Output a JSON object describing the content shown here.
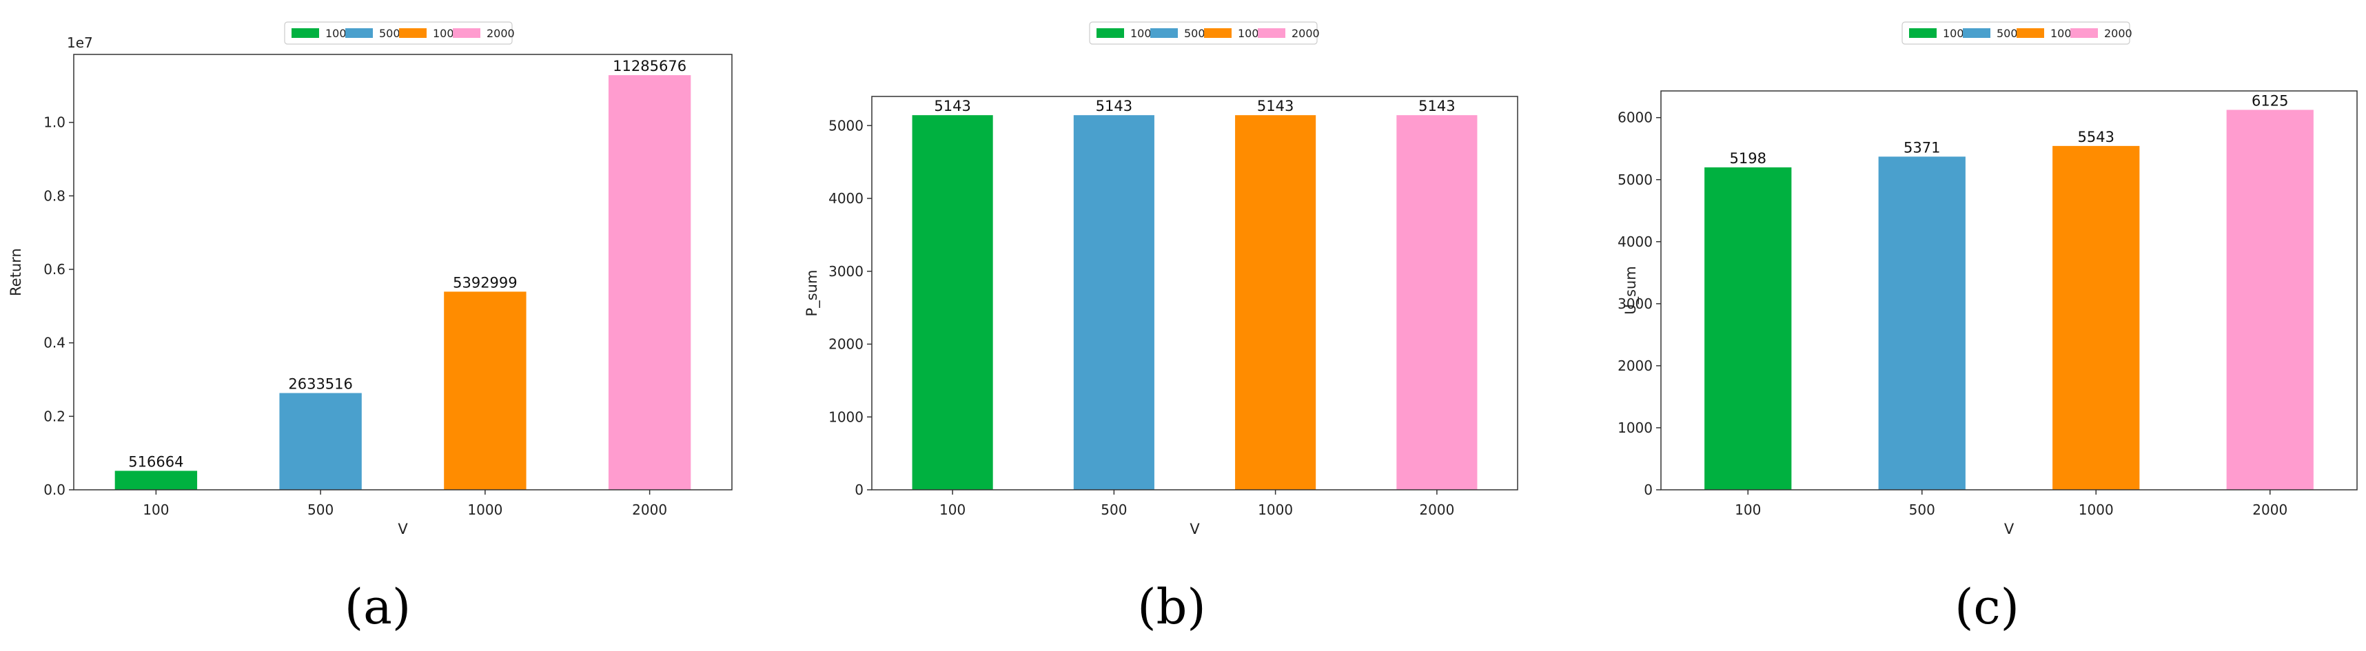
{
  "colors": {
    "100": "#00b140",
    "500": "#4aa0cd",
    "1000": "#ff8c00",
    "2000": "#ff9ccf"
  },
  "chart_data": [
    {
      "type": "bar",
      "categories": [
        "100",
        "500",
        "1000",
        "2000"
      ],
      "values": [
        516664,
        2633516,
        5392999,
        11285676
      ],
      "data_labels": [
        "516664",
        "2633516",
        "5392999",
        "11285676"
      ],
      "legend": [
        "100",
        "500",
        "1000",
        "2000"
      ],
      "legend_position": "top-center",
      "xlabel": "V",
      "ylabel": "Return",
      "ylim": [
        0,
        11850000
      ],
      "yticks": [
        0,
        2000000,
        4000000,
        6000000,
        8000000,
        10000000
      ],
      "ytick_labels": [
        "0.0",
        "0.2",
        "0.4",
        "0.6",
        "0.8",
        "1.0"
      ],
      "offset_label": "1e7",
      "grid": false,
      "sublabel": "(a)"
    },
    {
      "type": "bar",
      "categories": [
        "100",
        "500",
        "1000",
        "2000"
      ],
      "values": [
        5143,
        5143,
        5143,
        5143
      ],
      "data_labels": [
        "5143",
        "5143",
        "5143",
        "5143"
      ],
      "legend": [
        "100",
        "500",
        "1000",
        "2000"
      ],
      "legend_position": "top-center",
      "xlabel": "V",
      "ylabel": "P_sum",
      "ylim": [
        0,
        5400
      ],
      "yticks": [
        0,
        1000,
        2000,
        3000,
        4000,
        5000
      ],
      "ytick_labels": [
        "0",
        "1000",
        "2000",
        "3000",
        "4000",
        "5000"
      ],
      "offset_label": "",
      "grid": false,
      "sublabel": "(b)"
    },
    {
      "type": "bar",
      "categories": [
        "100",
        "500",
        "1000",
        "2000"
      ],
      "values": [
        5198,
        5371,
        5543,
        6125
      ],
      "data_labels": [
        "5198",
        "5371",
        "5543",
        "6125"
      ],
      "legend": [
        "100",
        "500",
        "1000",
        "2000"
      ],
      "legend_position": "top-center",
      "xlabel": "V",
      "ylabel": "U_sum",
      "ylim": [
        0,
        6430
      ],
      "yticks": [
        0,
        1000,
        2000,
        3000,
        4000,
        5000,
        6000
      ],
      "ytick_labels": [
        "0",
        "1000",
        "2000",
        "3000",
        "4000",
        "5000",
        "6000"
      ],
      "offset_label": "",
      "grid": false,
      "sublabel": "(c)"
    }
  ]
}
